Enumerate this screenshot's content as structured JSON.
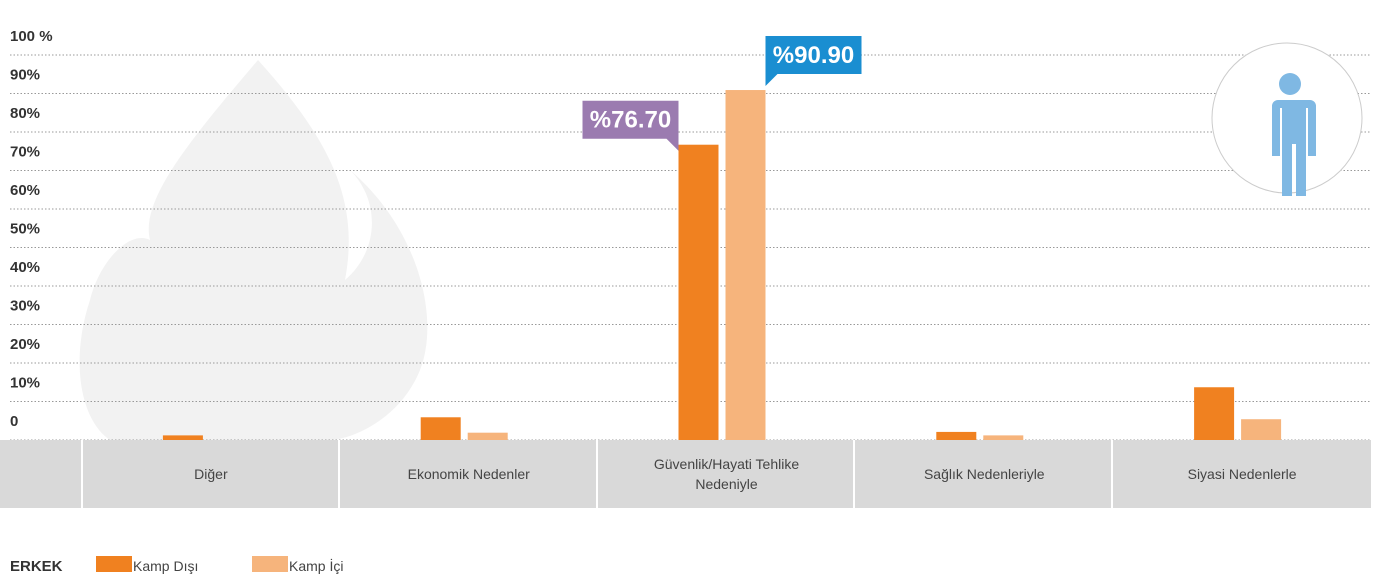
{
  "chart_data": {
    "type": "bar",
    "categories": [
      "Diğer",
      "Ekonomik Nedenler",
      "Güvenlik/Hayati Tehlike Nedeniyle",
      "Sağlık Nedenleriyle",
      "Siyasi Nedenlerle"
    ],
    "series": [
      {
        "name": "Kamp Dışı",
        "color": "#f08120",
        "label_color": "#9b7bb0",
        "values": [
          1.2,
          5.9,
          76.7,
          2.1,
          13.7
        ],
        "value_labels": [
          null,
          null,
          "%76.70",
          null,
          null
        ]
      },
      {
        "name": "Kamp İçi",
        "color": "#f6b47c",
        "label_color": "#1a8ed1",
        "values": [
          0,
          1.9,
          90.9,
          1.2,
          5.4
        ],
        "value_labels": [
          null,
          null,
          "%90.90",
          null,
          null
        ]
      }
    ],
    "legend_title": "ERKEK",
    "ylim": [
      0,
      100
    ],
    "yticks": [
      0,
      {
        "value": 10,
        "label": "10%"
      },
      {
        "value": 20,
        "label": "20%"
      },
      {
        "value": 30,
        "label": "30%"
      },
      {
        "value": 40,
        "label": "40%"
      },
      {
        "value": 50,
        "label": "50%"
      },
      {
        "value": 60,
        "label": "60%"
      },
      {
        "value": 70,
        "label": "70%"
      },
      {
        "value": 80,
        "label": "80%"
      },
      {
        "value": 90,
        "label": "90%"
      },
      {
        "value": 100,
        "label": "100 %"
      }
    ],
    "grid": true
  }
}
